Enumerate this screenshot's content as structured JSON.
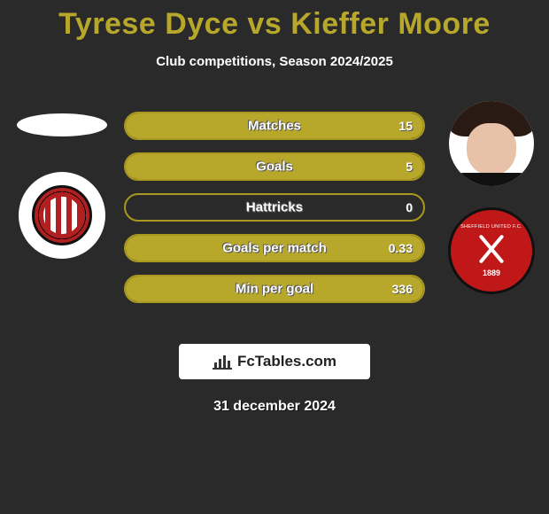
{
  "title": "Tyrese Dyce vs Kieffer Moore",
  "subtitle": "Club competitions, Season 2024/2025",
  "date": "31 december 2024",
  "footer_brand": "FcTables.com",
  "colors": {
    "title": "#b7a72a",
    "bar_border": "#a89820",
    "bar_fill": "#b7a72a",
    "background": "#2a2a2a",
    "text": "#ffffff"
  },
  "player_left": {
    "name": "Tyrese Dyce",
    "club": "Sunderland",
    "crest_colors": {
      "primary": "#b02020",
      "secondary": "#ffffff",
      "accent": "#d9b84a"
    }
  },
  "player_right": {
    "name": "Kieffer Moore",
    "club": "Sheffield United",
    "crest_colors": {
      "primary": "#c01818",
      "secondary": "#ffffff"
    },
    "crest_year": "1889",
    "crest_text": "SHEFFIELD UNITED F.C."
  },
  "stats": [
    {
      "label": "Matches",
      "left_value": "",
      "right_value": "15",
      "left_pct": 0,
      "right_pct": 100
    },
    {
      "label": "Goals",
      "left_value": "",
      "right_value": "5",
      "left_pct": 0,
      "right_pct": 100
    },
    {
      "label": "Hattricks",
      "left_value": "",
      "right_value": "0",
      "left_pct": 0,
      "right_pct": 0
    },
    {
      "label": "Goals per match",
      "left_value": "",
      "right_value": "0.33",
      "left_pct": 0,
      "right_pct": 100
    },
    {
      "label": "Min per goal",
      "left_value": "",
      "right_value": "336",
      "left_pct": 0,
      "right_pct": 100
    }
  ],
  "typography": {
    "title_fontsize": 34,
    "subtitle_fontsize": 15,
    "stat_label_fontsize": 15,
    "stat_value_fontsize": 14,
    "date_fontsize": 16
  }
}
